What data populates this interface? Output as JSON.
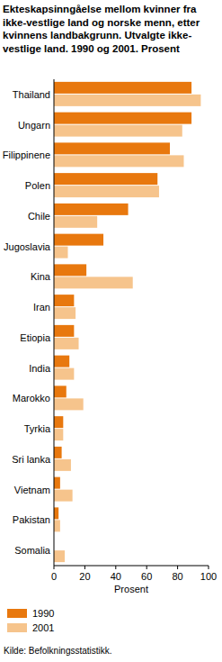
{
  "chart_data": {
    "type": "bar",
    "orientation": "horizontal",
    "title": "Ekteskapsinngåelse mellom kvinner fra ikke-vestlige land og norske menn, etter kvinnens landbakgrunn. Utvalgte ikke-vestlige land. 1990 og 2001. Prosent",
    "categories": [
      "Thailand",
      "Ungarn",
      "Filippinene",
      "Polen",
      "Chile",
      "Jugoslavia",
      "Kina",
      "Iran",
      "Etiopia",
      "India",
      "Marokko",
      "Tyrkia",
      "Sri lanka",
      "Vietnam",
      "Pakistan",
      "Somalia"
    ],
    "series": [
      {
        "name": "1990",
        "color": "#e8780e",
        "values": [
          89,
          89,
          75,
          67,
          48,
          32,
          21,
          13,
          13,
          10,
          8,
          6,
          5,
          4,
          3,
          0
        ]
      },
      {
        "name": "2001",
        "color": "#f6c48c",
        "values": [
          95,
          83,
          84,
          68,
          28,
          9,
          51,
          14,
          16,
          13,
          19,
          6,
          11,
          12,
          4,
          7
        ]
      }
    ],
    "xlim": [
      0,
      100
    ],
    "xticks": [
      0,
      20,
      40,
      60,
      80,
      100
    ],
    "x_label": "Prosent",
    "source": "Kilde: Befolkningsstatistikk.",
    "grid": false,
    "legend": "bottom"
  }
}
